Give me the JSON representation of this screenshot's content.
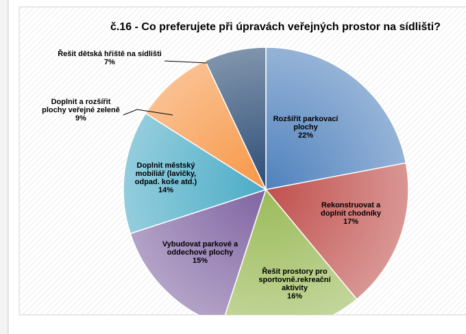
{
  "chart_data": {
    "type": "pie",
    "title": "č.16 - Co preferujete při úpravách veřejných prostor na sídlišti?",
    "categories": [
      [
        "Rozšířit parkovací",
        "plochy"
      ],
      [
        "Rekonstruovat  a",
        "doplnit chodníky"
      ],
      [
        "Řešit prostory  pro",
        "sportovně.rekreační",
        "aktivity"
      ],
      [
        "Vybudovat parkové a",
        "oddechové plochy"
      ],
      [
        "Doplnit městský",
        "mobiliář (lavičky,",
        "odpad. koše atd.)"
      ],
      [
        "Doplnit a rozšířit",
        "plochy veřejné zeleně"
      ],
      [
        "Řešit dětská hřiště na sídlišti"
      ]
    ],
    "values": [
      22,
      17,
      16,
      15,
      14,
      9,
      7
    ],
    "value_labels": [
      "22%",
      "17%",
      "16%",
      "15%",
      "14%",
      "9%",
      "7%"
    ],
    "colors": [
      "#4f81bd",
      "#c0504d",
      "#9bbb59",
      "#8064a2",
      "#4bacc6",
      "#f79646",
      "#2c4d75"
    ]
  }
}
